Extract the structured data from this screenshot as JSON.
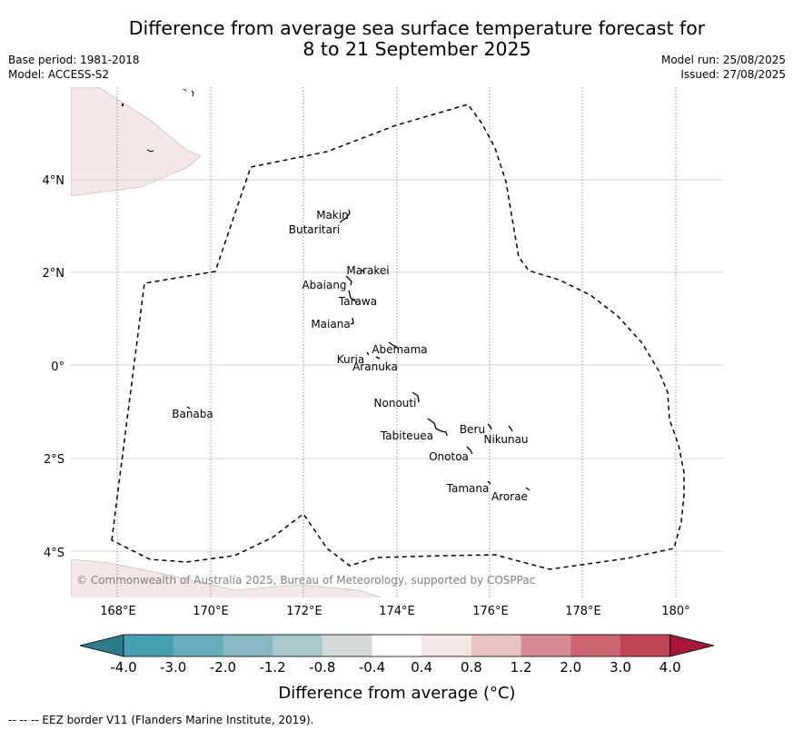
{
  "title_line1": "Difference from average sea surface temperature forecast for",
  "title_line2": "8 to 21 September 2025",
  "base_period": "Base period: 1981-2018",
  "model": "Model: ACCESS-S2",
  "model_run": "Model run: 25/08/2025",
  "issued": "Issued: 27/08/2025",
  "copyright": "© Commonwealth of Australia 2025, Bureau of Meteorology, supported by COSPPac",
  "footer": "--  --  -- EEZ border V11 (Flanders Marine Institute, 2019).",
  "lon_labels": [
    "168°E",
    "170°E",
    "172°E",
    "174°E",
    "176°E",
    "178°E",
    "180°"
  ],
  "lat_labels": [
    "4°N",
    "2°N",
    "0°",
    "2°S",
    "4°S"
  ],
  "islands": [
    {
      "name": "Makin"
    },
    {
      "name": "Butaritari"
    },
    {
      "name": "Marakei"
    },
    {
      "name": "Abaiang"
    },
    {
      "name": "Tarawa"
    },
    {
      "name": "Maiana"
    },
    {
      "name": "Abemama"
    },
    {
      "name": "Kuria"
    },
    {
      "name": "Aranuka"
    },
    {
      "name": "Nonouti"
    },
    {
      "name": "Banaba"
    },
    {
      "name": "Beru"
    },
    {
      "name": "Nikunau"
    },
    {
      "name": "Tabiteuea"
    },
    {
      "name": "Onotoa"
    },
    {
      "name": "Tamana"
    },
    {
      "name": "Arorae"
    }
  ],
  "colorbar": {
    "title": "Difference from average (°C)",
    "ticks": [
      "-4.0",
      "-3.0",
      "-2.0",
      "-1.2",
      "-0.8",
      "-0.4",
      "0.4",
      "0.8",
      "1.2",
      "2.0",
      "3.0",
      "4.0"
    ],
    "colors": [
      "#2c7a8a",
      "#45a0b2",
      "#67adbb",
      "#87b8c3",
      "#a8c8cd",
      "#d3d9d9",
      "#ffffff",
      "#f4e6e4",
      "#e8c4c1",
      "#d68b92",
      "#cb6671",
      "#c04353",
      "#a8183b"
    ]
  },
  "land_color": "#f3e8e6"
}
